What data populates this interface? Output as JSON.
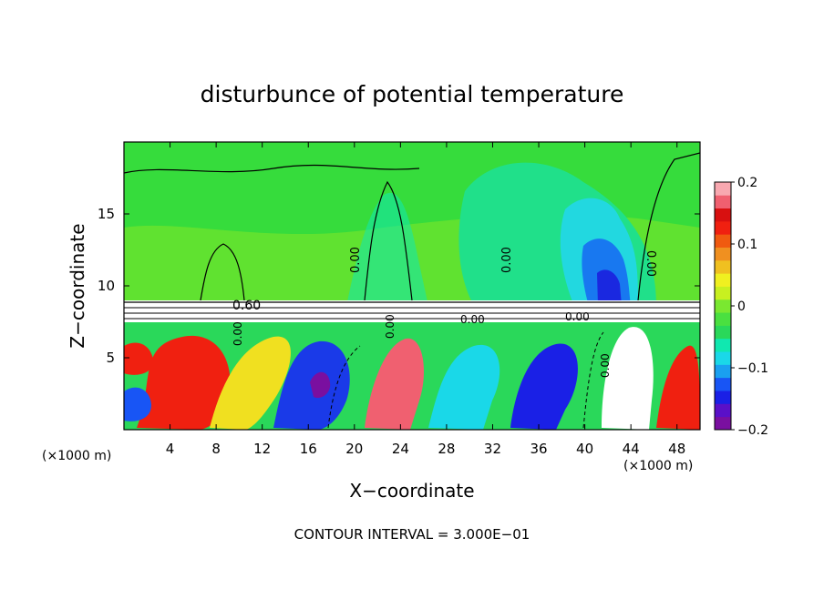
{
  "chart_data": {
    "type": "heatmap",
    "title": "disturbunce of potential temperature",
    "xlabel": "X−coordinate",
    "ylabel": "Z−coordinate",
    "x_unit_left": "(×1000 m)",
    "x_unit_right": "(×1000 m)",
    "xlim": [
      0,
      50
    ],
    "ylim": [
      0,
      20
    ],
    "x_ticks": [
      4,
      8,
      12,
      16,
      20,
      24,
      28,
      32,
      36,
      40,
      44,
      48
    ],
    "y_ticks": [
      5,
      10,
      15
    ],
    "colorbar": {
      "range": [
        -0.2,
        0.2
      ],
      "tick_values": [
        0.2,
        0.1,
        0,
        -0.1,
        -0.2
      ],
      "tick_labels": [
        "0.2",
        "0.1",
        "0",
        "−0.1",
        "−0.2"
      ],
      "colors": [
        "#7a0fa0",
        "#5a10c8",
        "#1a20e6",
        "#1855f5",
        "#1aa0f0",
        "#1ad8e8",
        "#10e8b0",
        "#2ad85a",
        "#4ae040",
        "#7ae830",
        "#c8f020",
        "#f0f020",
        "#f0c020",
        "#f09020",
        "#f05a10",
        "#f02010",
        "#d81010",
        "#f06070",
        "#f8a8b0"
      ]
    },
    "contour_labels": [
      "0.60",
      "0.00",
      "0.00",
      "0.00",
      "0.00",
      "0.00",
      "0.00",
      "0.00",
      "0.00"
    ],
    "contour_interval_text": "CONTOUR INTERVAL = 3.000E−01"
  }
}
